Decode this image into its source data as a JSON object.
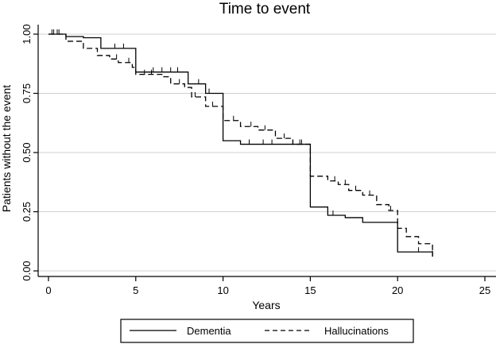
{
  "chart_data": {
    "type": "line",
    "title": "Time to event",
    "xlabel": "Years",
    "ylabel": "Patients without the event",
    "xlim": [
      0,
      25
    ],
    "ylim": [
      0,
      1
    ],
    "xticks": [
      0,
      5,
      10,
      15,
      20,
      25
    ],
    "yticks": [
      0.0,
      0.25,
      0.5,
      0.75,
      1.0
    ],
    "ytick_labels": [
      "0.00",
      "0.25",
      "0.50",
      "0.75",
      "1.00"
    ],
    "grid": "horizontal",
    "legend_position": "bottom",
    "series": [
      {
        "name": "Dementia",
        "style": "solid",
        "steps": [
          [
            0,
            1.0
          ],
          [
            1.0,
            0.99
          ],
          [
            2.0,
            0.985
          ],
          [
            3.0,
            0.94
          ],
          [
            5.0,
            0.84
          ],
          [
            8.0,
            0.79
          ],
          [
            9.0,
            0.75
          ],
          [
            10.0,
            0.55
          ],
          [
            11.0,
            0.535
          ],
          [
            15.0,
            0.27
          ],
          [
            16.0,
            0.235
          ],
          [
            17.0,
            0.225
          ],
          [
            18.0,
            0.205
          ],
          [
            20.0,
            0.08
          ],
          [
            22.0,
            0.065
          ]
        ],
        "censored": [
          [
            0.3,
            1.0
          ],
          [
            0.6,
            1.0
          ],
          [
            3.8,
            0.94
          ],
          [
            4.3,
            0.94
          ],
          [
            6.0,
            0.84
          ],
          [
            6.5,
            0.84
          ],
          [
            7.0,
            0.84
          ],
          [
            7.4,
            0.84
          ],
          [
            8.6,
            0.79
          ],
          [
            9.2,
            0.75
          ],
          [
            11.5,
            0.535
          ],
          [
            12.3,
            0.535
          ],
          [
            12.8,
            0.535
          ],
          [
            14.0,
            0.535
          ],
          [
            14.5,
            0.535
          ],
          [
            16.3,
            0.235
          ],
          [
            21.2,
            0.08
          ],
          [
            22.0,
            0.065
          ]
        ]
      },
      {
        "name": "Hallucinations",
        "style": "dashed",
        "steps": [
          [
            0,
            1.0
          ],
          [
            1.0,
            0.97
          ],
          [
            2.0,
            0.94
          ],
          [
            2.8,
            0.91
          ],
          [
            3.5,
            0.895
          ],
          [
            4.0,
            0.88
          ],
          [
            4.8,
            0.86
          ],
          [
            5.0,
            0.83
          ],
          [
            6.5,
            0.82
          ],
          [
            7.0,
            0.79
          ],
          [
            7.8,
            0.775
          ],
          [
            8.2,
            0.735
          ],
          [
            9.0,
            0.695
          ],
          [
            10.0,
            0.635
          ],
          [
            11.0,
            0.61
          ],
          [
            12.0,
            0.595
          ],
          [
            13.0,
            0.56
          ],
          [
            14.0,
            0.535
          ],
          [
            15.0,
            0.4
          ],
          [
            16.0,
            0.38
          ],
          [
            16.6,
            0.365
          ],
          [
            17.2,
            0.34
          ],
          [
            18.0,
            0.32
          ],
          [
            18.8,
            0.28
          ],
          [
            19.5,
            0.255
          ],
          [
            20.0,
            0.18
          ],
          [
            20.5,
            0.145
          ],
          [
            21.2,
            0.115
          ],
          [
            22.0,
            0.06
          ]
        ],
        "censored": [
          [
            0.2,
            1.0
          ],
          [
            0.5,
            1.0
          ],
          [
            3.9,
            0.895
          ],
          [
            4.6,
            0.88
          ],
          [
            5.5,
            0.83
          ],
          [
            5.9,
            0.83
          ],
          [
            7.5,
            0.79
          ],
          [
            8.4,
            0.735
          ],
          [
            9.4,
            0.695
          ],
          [
            10.6,
            0.635
          ],
          [
            11.6,
            0.61
          ],
          [
            12.4,
            0.595
          ],
          [
            13.5,
            0.56
          ],
          [
            14.4,
            0.535
          ],
          [
            16.4,
            0.38
          ],
          [
            17.0,
            0.365
          ],
          [
            17.6,
            0.34
          ],
          [
            18.4,
            0.32
          ],
          [
            19.6,
            0.255
          ]
        ]
      }
    ]
  }
}
